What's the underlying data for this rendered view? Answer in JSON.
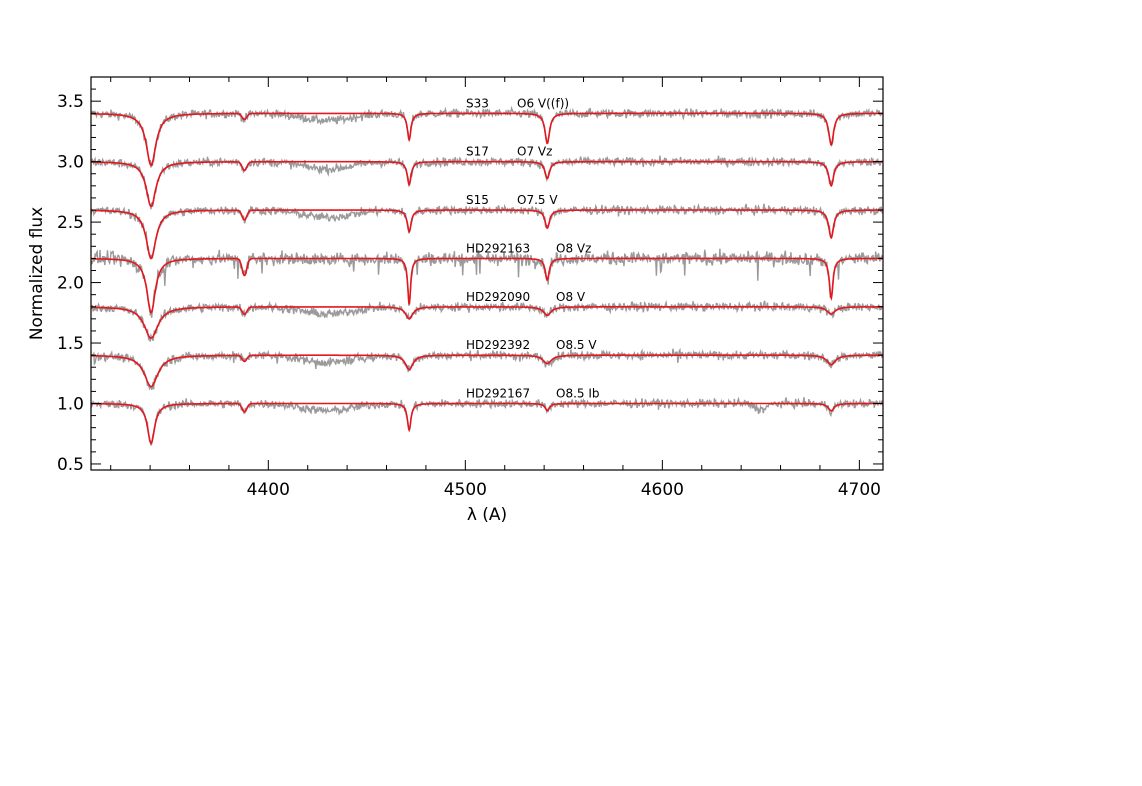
{
  "chart_data": {
    "type": "line",
    "xlabel": "λ (A)",
    "ylabel": "Normalized flux",
    "xlim": [
      4310,
      4712
    ],
    "ylim": [
      0.45,
      3.7
    ],
    "xticks": [
      4400,
      4500,
      4600,
      4700
    ],
    "yticks": [
      0.5,
      1.0,
      1.5,
      2.0,
      2.5,
      3.0,
      3.5
    ],
    "x_tick_labels": [
      "4400",
      "4500",
      "4600",
      "4700"
    ],
    "y_tick_labels": [
      "0.5",
      "1.0",
      "1.5",
      "2.0",
      "2.5",
      "3.0",
      "3.5"
    ],
    "grid": false,
    "legend": "none",
    "colors": {
      "observed": "#9a9a9a",
      "model": "#e3171e",
      "axis": "#000000"
    },
    "lines": {
      "He I 4387": 4387.9,
      "He I 4471": 4471.5,
      "He II 4541": 4541.6,
      "He II 4686": 4685.7,
      "H gamma": 4340.5
    },
    "series": [
      {
        "name": "S33",
        "sptype": "O6 V((f))",
        "offset": 3.4,
        "depths": {
          "hg": 0.43,
          "he4387": 0.05,
          "he4471": 0.22,
          "he4541": 0.25,
          "he4686": 0.26
        },
        "widths": {
          "hg": 3.0,
          "he4471": 1.1,
          "he4541": 1.4,
          "he4686": 1.5
        }
      },
      {
        "name": "S17",
        "sptype": "O7 Vz",
        "offset": 3.0,
        "depths": {
          "hg": 0.37,
          "he4387": 0.07,
          "he4471": 0.19,
          "he4541": 0.14,
          "he4686": 0.2
        },
        "widths": {
          "hg": 3.0,
          "he4471": 1.2,
          "he4541": 1.4,
          "he4686": 1.5
        }
      },
      {
        "name": "S15",
        "sptype": "O7.5 V",
        "offset": 2.6,
        "depths": {
          "hg": 0.4,
          "he4387": 0.08,
          "he4471": 0.18,
          "he4541": 0.15,
          "he4686": 0.23
        },
        "widths": {
          "hg": 3.0,
          "he4471": 1.2,
          "he4541": 1.4,
          "he4686": 1.5
        }
      },
      {
        "name": "HD292163",
        "sptype": "O8 Vz",
        "offset": 2.2,
        "depths": {
          "hg": 0.45,
          "he4387": 0.14,
          "he4471": 0.38,
          "he4541": 0.18,
          "he4686": 0.33
        },
        "widths": {
          "hg": 2.6,
          "he4471": 0.9,
          "he4541": 1.2,
          "he4686": 1.1
        }
      },
      {
        "name": "HD292090",
        "sptype": "O8 V",
        "offset": 1.8,
        "depths": {
          "hg": 0.26,
          "he4387": 0.06,
          "he4471": 0.1,
          "he4541": 0.07,
          "he4686": 0.06
        },
        "widths": {
          "hg": 4.2,
          "he4471": 2.2,
          "he4541": 2.4,
          "he4686": 2.5
        }
      },
      {
        "name": "HD292392",
        "sptype": "O8.5 V",
        "offset": 1.4,
        "depths": {
          "hg": 0.26,
          "he4387": 0.05,
          "he4471": 0.12,
          "he4541": 0.07,
          "he4686": 0.08
        },
        "widths": {
          "hg": 4.2,
          "he4471": 2.3,
          "he4541": 2.6,
          "he4686": 2.6
        }
      },
      {
        "name": "HD292167",
        "sptype": "O8.5 Ib",
        "offset": 1.0,
        "depths": {
          "hg": 0.33,
          "he4387": 0.07,
          "he4471": 0.22,
          "he4541": 0.06,
          "he4686": 0.06
        },
        "widths": {
          "hg": 2.2,
          "he4471": 1.1,
          "he4541": 1.3,
          "he4686": 1.8
        }
      }
    ]
  }
}
